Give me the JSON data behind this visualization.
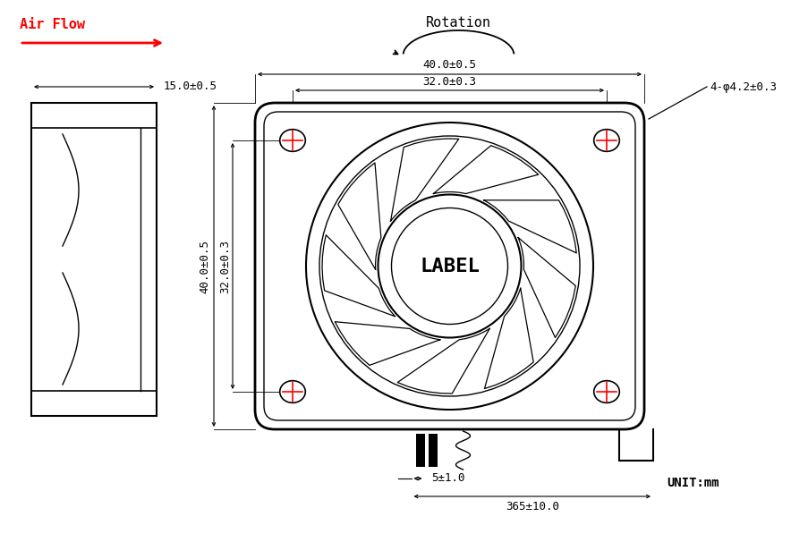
{
  "bg_color": "#ffffff",
  "line_color": "#000000",
  "red_color": "#ff0000",
  "title_airflow": "Air Flow",
  "title_rotation": "Rotation",
  "label_unit": "UNIT:mm",
  "label_label": "LABEL",
  "dim_15": "15.0±0.5",
  "dim_40h": "40.0±0.5",
  "dim_32h": "32.0±0.3",
  "dim_40v": "40.0±0.5",
  "dim_32v": "32.0±0.3",
  "dim_hole": "4-φ4.2±0.3",
  "dim_wire_gap": "5±1.0",
  "dim_wire_len": "365±10.0",
  "font_size_label": 16,
  "font_size_dim": 9,
  "font_size_title": 11
}
